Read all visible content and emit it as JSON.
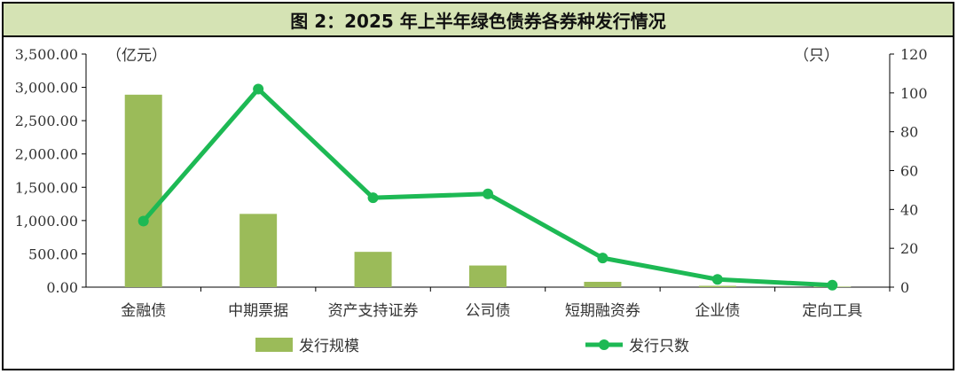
{
  "title": "图 2：2025 年上半年绿色债券各券种发行情况",
  "chart_data": {
    "type": "bar+line",
    "categories": [
      "金融债",
      "中期票据",
      "资产支持证券",
      "公司债",
      "短期融资券",
      "企业债",
      "定向工具"
    ],
    "series": [
      {
        "name": "发行规模",
        "type": "bar",
        "axis": "left",
        "color": "#9bbb59",
        "values": [
          2890,
          1100,
          530,
          325,
          80,
          20,
          8
        ]
      },
      {
        "name": "发行只数",
        "type": "line",
        "axis": "right",
        "color": "#1db954",
        "values": [
          34,
          102,
          46,
          48,
          15,
          4,
          1
        ]
      }
    ],
    "y_left": {
      "unit": "（亿元）",
      "min": 0,
      "max": 3500,
      "step": 500,
      "ticks": [
        "0.00",
        "500.00",
        "1,000.00",
        "1,500.00",
        "2,000.00",
        "2,500.00",
        "3,000.00",
        "3,500.00"
      ]
    },
    "y_right": {
      "unit": "（只）",
      "min": 0,
      "max": 120,
      "step": 20,
      "ticks": [
        "0",
        "20",
        "40",
        "60",
        "80",
        "100",
        "120"
      ]
    },
    "legend_placement": "bottom"
  }
}
